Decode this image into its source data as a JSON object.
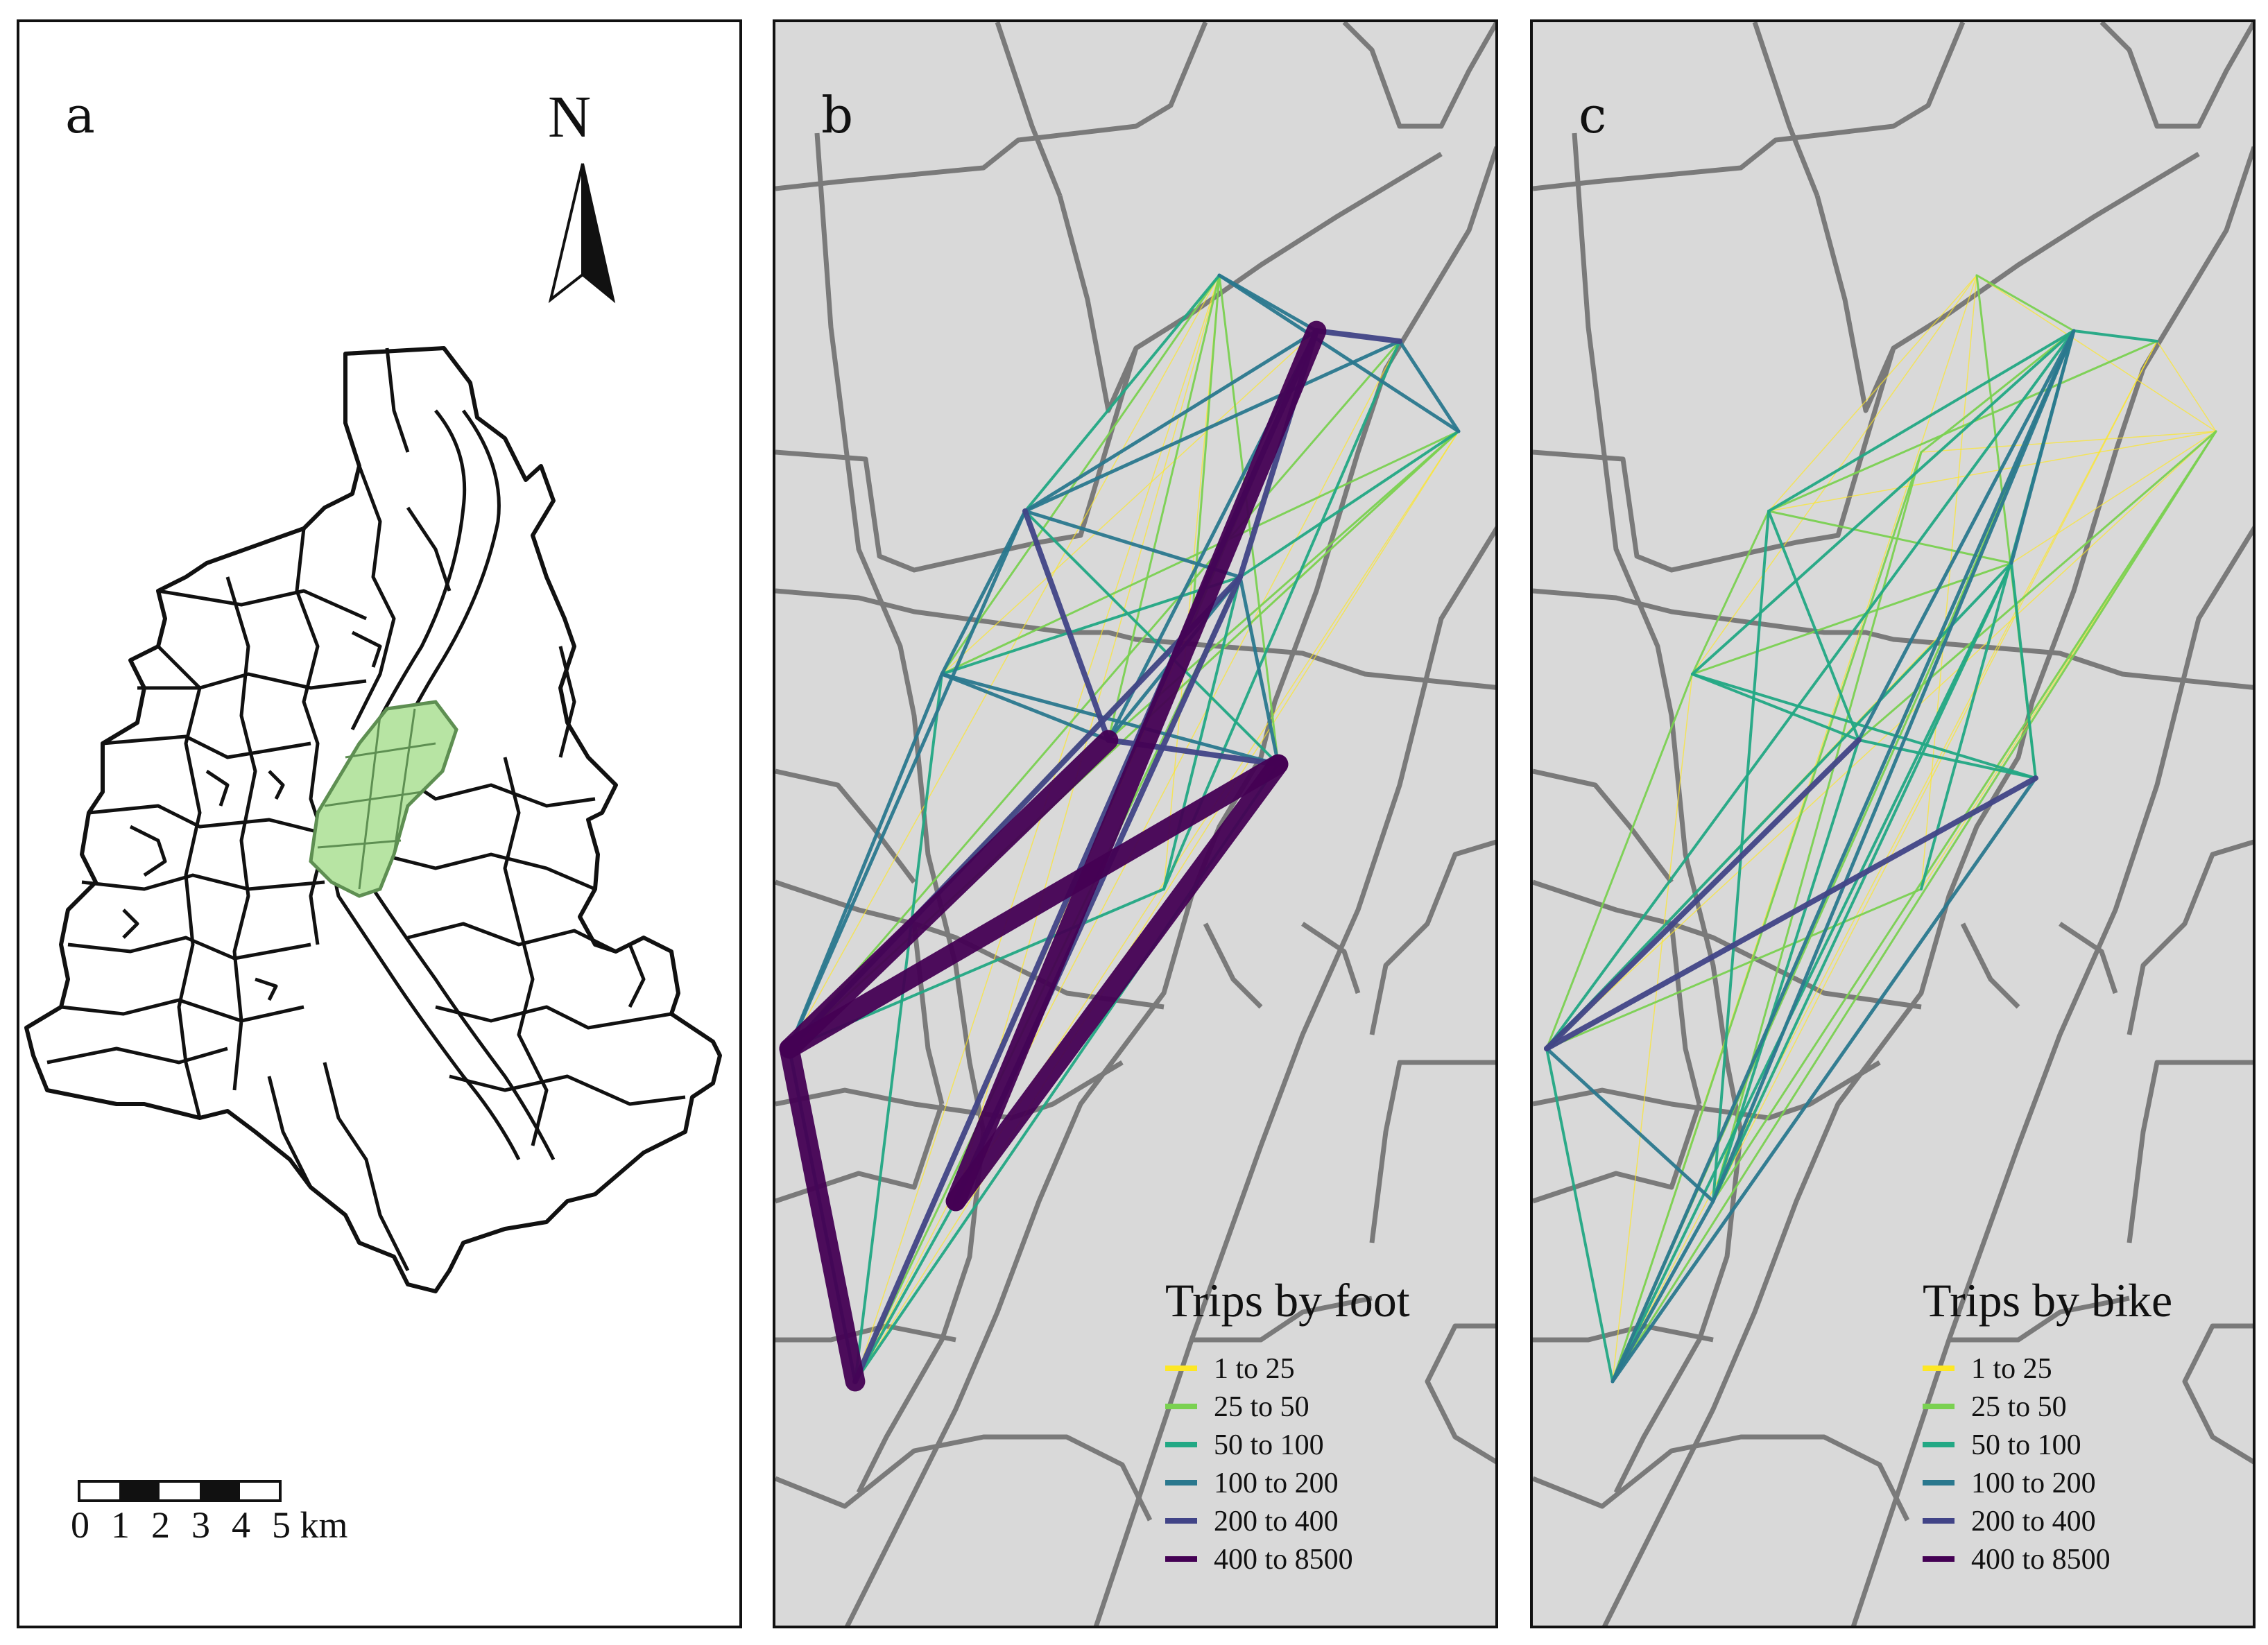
{
  "panels": {
    "a": {
      "label": "a",
      "north_label": "N",
      "scale_bar": {
        "ticks": [
          "0",
          "1",
          "2",
          "3",
          "4",
          "5 km"
        ]
      },
      "colors": {
        "outline": "#111111",
        "study_area_fill": "#b7e4a3",
        "study_area_stroke": "#5e8f52"
      }
    },
    "b": {
      "label": "b",
      "legend_title": "Trips by foot",
      "legend": [
        {
          "label": "1 to 25",
          "color": "#fde725"
        },
        {
          "label": "25 to 50",
          "color": "#7ad151"
        },
        {
          "label": "50 to 100",
          "color": "#22a884"
        },
        {
          "label": "100 to 200",
          "color": "#2a788e"
        },
        {
          "label": "200 to 400",
          "color": "#414487"
        },
        {
          "label": "400 to 8500",
          "color": "#440154"
        }
      ]
    },
    "c": {
      "label": "c",
      "legend_title": "Trips by bike",
      "legend": [
        {
          "label": "1 to 25",
          "color": "#fde725"
        },
        {
          "label": "25 to 50",
          "color": "#7ad151"
        },
        {
          "label": "50 to 100",
          "color": "#22a884"
        },
        {
          "label": "100 to 200",
          "color": "#2a788e"
        },
        {
          "label": "200 to 400",
          "color": "#414487"
        },
        {
          "label": "400 to 8500",
          "color": "#440154"
        }
      ]
    }
  },
  "map_colors": {
    "background": "#d9d9d9",
    "boundaries": "#7a7a7a"
  }
}
